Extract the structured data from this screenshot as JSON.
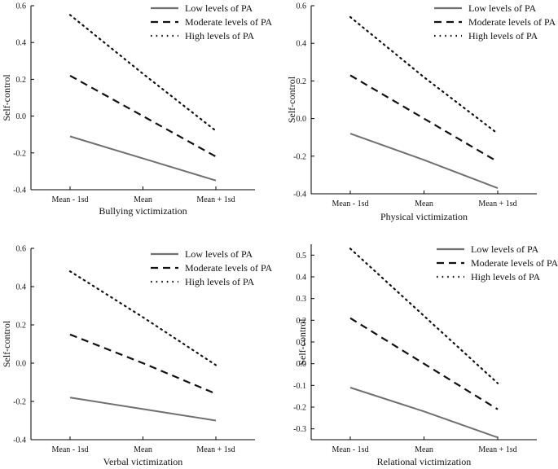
{
  "figure": {
    "legend_title_hidden": "",
    "colors": {
      "low": "#707070",
      "moderate": "#111111",
      "high": "#111111",
      "axis": "#000000"
    }
  },
  "chart_data": [
    {
      "type": "line",
      "title": "",
      "xlabel": "Bullying victimization",
      "ylabel": "Self-control",
      "categories": [
        "Mean - 1sd",
        "Mean",
        "Mean + 1sd"
      ],
      "ylim": [
        -0.4,
        0.6
      ],
      "yticks": [
        -0.4,
        -0.2,
        0.0,
        0.2,
        0.4,
        0.6
      ],
      "ytick_labels": [
        "-0.4",
        "-0.2",
        "0.0",
        "0.2",
        "0.4",
        "0.6"
      ],
      "legend_position": "top-right",
      "series": [
        {
          "name": "Low levels of PA",
          "style": "solid",
          "values": [
            -0.11,
            -0.23,
            -0.35
          ]
        },
        {
          "name": "Moderate levels of PA",
          "style": "dashed",
          "values": [
            0.22,
            0.0,
            -0.22
          ]
        },
        {
          "name": "High levels of PA",
          "style": "dotted",
          "values": [
            0.55,
            0.23,
            -0.08
          ]
        }
      ]
    },
    {
      "type": "line",
      "title": "",
      "xlabel": "Physical victimization",
      "ylabel": "Self-control",
      "categories": [
        "Mean - 1sd",
        "Mean",
        "Mean + 1sd"
      ],
      "ylim": [
        -0.4,
        0.6
      ],
      "yticks": [
        -0.4,
        -0.2,
        0.0,
        0.2,
        0.4,
        0.6
      ],
      "ytick_labels": [
        "-0.4",
        "-0.2",
        "0.0",
        "0.2",
        "0.4",
        "0.6"
      ],
      "legend_position": "top-right",
      "series": [
        {
          "name": "Low levels of PA",
          "style": "solid",
          "values": [
            -0.08,
            -0.22,
            -0.37
          ]
        },
        {
          "name": "Moderate levels of PA",
          "style": "dashed",
          "values": [
            0.23,
            0.0,
            -0.23
          ]
        },
        {
          "name": "High levels of PA",
          "style": "dotted",
          "values": [
            0.54,
            0.22,
            -0.08
          ]
        }
      ]
    },
    {
      "type": "line",
      "title": "",
      "xlabel": "Verbal victimization",
      "ylabel": "Self-control",
      "categories": [
        "Mean - 1sd",
        "Mean",
        "Mean + 1sd"
      ],
      "ylim": [
        -0.4,
        0.6
      ],
      "yticks": [
        -0.4,
        -0.2,
        0.0,
        0.2,
        0.4,
        0.6
      ],
      "ytick_labels": [
        "-0.4",
        "-0.2",
        "0.0",
        "0.2",
        "0.4",
        "0.6"
      ],
      "legend_position": "top-right",
      "series": [
        {
          "name": "Low levels of PA",
          "style": "solid",
          "values": [
            -0.18,
            -0.24,
            -0.3
          ]
        },
        {
          "name": "Moderate levels of PA",
          "style": "dashed",
          "values": [
            0.15,
            0.0,
            -0.16
          ]
        },
        {
          "name": "High levels of PA",
          "style": "dotted",
          "values": [
            0.48,
            0.24,
            -0.01
          ]
        }
      ]
    },
    {
      "type": "line",
      "title": "",
      "xlabel": "Relational victimization",
      "ylabel": "Self-control",
      "categories": [
        "Mean - 1sd",
        "Mean",
        "Mean + 1sd"
      ],
      "ylim": [
        -0.35,
        0.55
      ],
      "yticks": [
        -0.3,
        -0.2,
        -0.1,
        0.0,
        0.1,
        0.2,
        0.3,
        0.4,
        0.5
      ],
      "ytick_labels": [
        "-0.3",
        "-0.2",
        "-0.1",
        "0.0",
        "0.1",
        "0.2",
        "0.3",
        "0.4",
        "0.5"
      ],
      "legend_position": "top-right",
      "series": [
        {
          "name": "Low levels of PA",
          "style": "solid",
          "values": [
            -0.11,
            -0.22,
            -0.34
          ]
        },
        {
          "name": "Moderate levels of PA",
          "style": "dashed",
          "values": [
            0.21,
            0.0,
            -0.21
          ]
        },
        {
          "name": "High levels of PA",
          "style": "dotted",
          "values": [
            0.53,
            0.22,
            -0.09
          ]
        }
      ]
    }
  ]
}
